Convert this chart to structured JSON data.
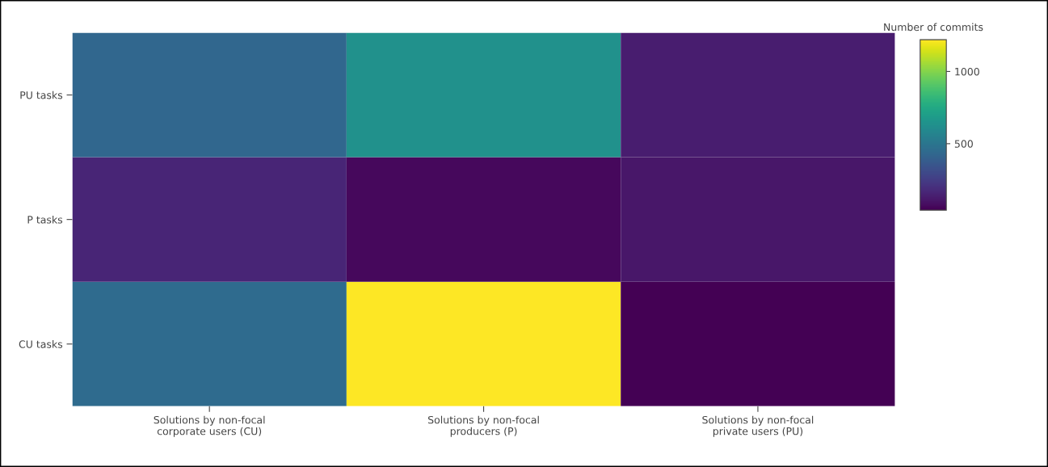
{
  "chart_data": {
    "type": "heatmap",
    "categories": [
      "Solutions by non-focal\ncorporate users (CU)",
      "Solutions by non-focal\nproducers (P)",
      "Solutions by non-focal\nprivate users (PU)"
    ],
    "y_categories": [
      "PU tasks",
      "P tasks",
      "CU tasks"
    ],
    "cells": [
      [
        430,
        630,
        135
      ],
      [
        160,
        65,
        110
      ],
      [
        450,
        1220,
        40
      ]
    ],
    "clabel": "Number of commits",
    "clim": [
      40,
      1220
    ],
    "cticks": [
      500,
      1000
    ]
  }
}
